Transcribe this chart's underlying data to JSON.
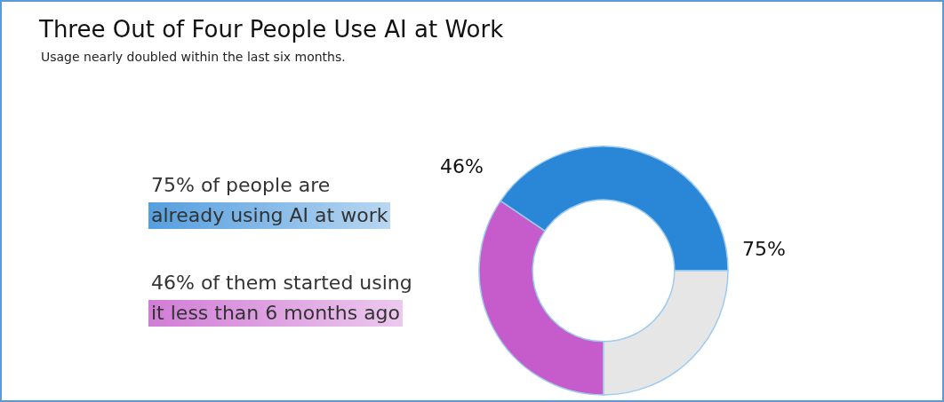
{
  "chart_data": {
    "type": "donut",
    "title": "Three Out of Four People Use AI at Work",
    "subtitle": "Usage nearly doubled within the last six months.",
    "categories": [
      null,
      null,
      null
    ],
    "values": [
      34.5,
      40.5,
      25
    ],
    "colors": [
      "#c65ccc",
      "#2a86d6",
      "#e6e6e6"
    ],
    "annotations": [
      "75% of people are",
      "already using AI at work",
      "46% of them started using",
      "it less than 6 months ago",
      "46%",
      "75%"
    ],
    "legend": false
  }
}
